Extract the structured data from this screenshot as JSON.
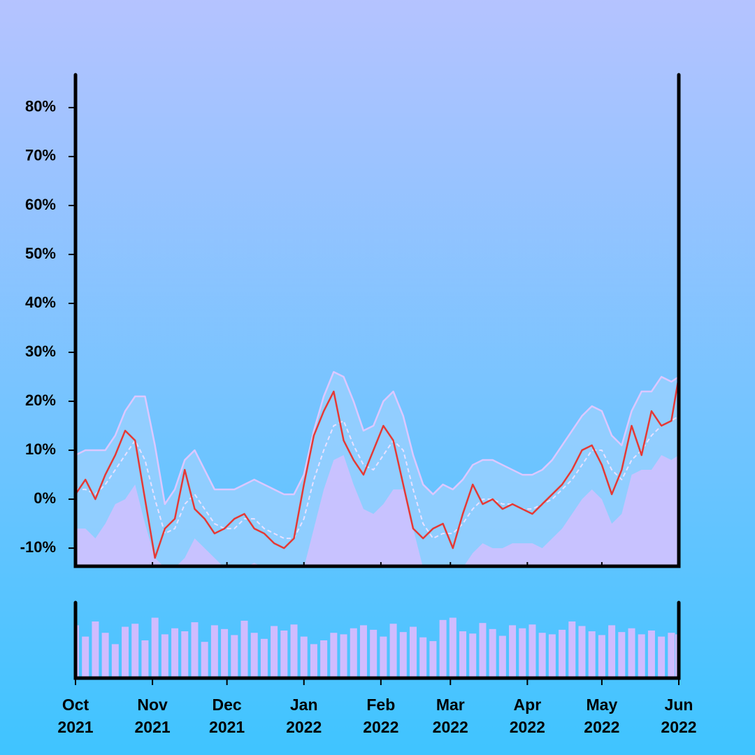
{
  "chart_data": [
    {
      "type": "line",
      "x": [
        0,
        4,
        8,
        12,
        16,
        20,
        24,
        28,
        32,
        36,
        40,
        44,
        48,
        52,
        56,
        60,
        64,
        68,
        72,
        76,
        80,
        84,
        88,
        92,
        96,
        100,
        104,
        108,
        112,
        116,
        120,
        124,
        128,
        132,
        136,
        140,
        144,
        148,
        152,
        156,
        160,
        164,
        168,
        172,
        176,
        180,
        184,
        188,
        192,
        196,
        200,
        204,
        208,
        212,
        216,
        220,
        224,
        228,
        232,
        236,
        240,
        243
      ],
      "xlim": [
        0,
        243
      ],
      "xticks": [
        {
          "value": 0,
          "label": "Oct 2021"
        },
        {
          "value": 31,
          "label": "Nov 2021"
        },
        {
          "value": 61,
          "label": "Dec 2021"
        },
        {
          "value": 92,
          "label": "Jan 2022"
        },
        {
          "value": 123,
          "label": "Feb 2022"
        },
        {
          "value": 151,
          "label": "Mar 2022"
        },
        {
          "value": 182,
          "label": "Apr 2022"
        },
        {
          "value": 212,
          "label": "May 2022"
        },
        {
          "value": 243,
          "label": "Jun 2022"
        }
      ],
      "ylim": [
        -13.7,
        86.7
      ],
      "yticks": [
        {
          "value": -10,
          "label": "-10%"
        },
        {
          "value": 0,
          "label": "0%"
        },
        {
          "value": 10,
          "label": "10%"
        },
        {
          "value": 20,
          "label": "20%"
        },
        {
          "value": 30,
          "label": "30%"
        },
        {
          "value": 40,
          "label": "40%"
        },
        {
          "value": 50,
          "label": "50%"
        },
        {
          "value": 60,
          "label": "60%"
        },
        {
          "value": 70,
          "label": "70%"
        },
        {
          "value": 80,
          "label": "80%"
        }
      ],
      "series": [
        {
          "color": "#dcc8ff",
          "fill": "#98d0ff",
          "values": [
            9,
            10,
            10,
            10,
            13,
            18,
            21,
            21,
            11,
            -1,
            2,
            8,
            10,
            6,
            2,
            2,
            2,
            3,
            4,
            3,
            2,
            1,
            1,
            5,
            14,
            21,
            26,
            25,
            20,
            14,
            15,
            20,
            22,
            17,
            9,
            3,
            1,
            3,
            2,
            4,
            7,
            8,
            8,
            7,
            6,
            5,
            5,
            6,
            8,
            11,
            14,
            17,
            19,
            18,
            13,
            11,
            18,
            22,
            22,
            25,
            24,
            25
          ]
        },
        {
          "fill": "#d2c0ff",
          "values": [
            -6,
            -6,
            -8,
            -5,
            -1,
            0,
            3,
            -5,
            -12,
            -14,
            -14,
            -12,
            -8,
            -10,
            -12,
            -14,
            -14,
            -14,
            -13,
            -14,
            -14,
            -14,
            -14,
            -14,
            -6,
            2,
            8,
            9,
            3,
            -2,
            -3,
            -1,
            2,
            2,
            -6,
            -14,
            -14,
            -14,
            -14,
            -14,
            -11,
            -9,
            -10,
            -10,
            -9,
            -9,
            -9,
            -10,
            -8,
            -6,
            -3,
            0,
            2,
            0,
            -5,
            -3,
            5,
            6,
            6,
            9,
            8,
            9
          ]
        },
        {
          "color": "#e8e0ff",
          "dash": true,
          "values": [
            2,
            2,
            1,
            3,
            6,
            9,
            12,
            8,
            0,
            -7,
            -6,
            -1,
            1,
            -2,
            -5,
            -6,
            -6,
            -4,
            -4,
            -6,
            -7,
            -8,
            -8,
            -4,
            4,
            10,
            15,
            16,
            11,
            7,
            6,
            9,
            12,
            10,
            2,
            -5,
            -8,
            -7,
            -7,
            -5,
            -2,
            0,
            0,
            -1,
            -1,
            -2,
            -2,
            -1,
            0,
            2,
            4,
            7,
            10,
            10,
            6,
            4,
            8,
            10,
            13,
            15,
            16,
            17
          ]
        },
        {
          "color": "#e53935",
          "values": [
            1,
            4,
            0,
            5,
            9,
            14,
            12,
            0,
            -12,
            -6,
            -4,
            6,
            -2,
            -4,
            -7,
            -6,
            -4,
            -3,
            -6,
            -7,
            -9,
            -10,
            -8,
            3,
            13,
            18,
            22,
            12,
            8,
            5,
            10,
            15,
            12,
            3,
            -6,
            -8,
            -6,
            -5,
            -10,
            -3,
            3,
            -1,
            0,
            -2,
            -1,
            -2,
            -3,
            -1,
            1,
            3,
            6,
            10,
            11,
            7,
            1,
            6,
            15,
            9,
            18,
            15,
            16,
            25
          ]
        }
      ]
    },
    {
      "type": "bar",
      "x": [
        0,
        4,
        8,
        12,
        16,
        20,
        24,
        28,
        32,
        36,
        40,
        44,
        48,
        52,
        56,
        60,
        64,
        68,
        72,
        76,
        80,
        84,
        88,
        92,
        96,
        100,
        104,
        108,
        112,
        116,
        120,
        124,
        128,
        132,
        136,
        140,
        144,
        148,
        152,
        156,
        160,
        164,
        168,
        172,
        176,
        180,
        184,
        188,
        192,
        196,
        200,
        204,
        208,
        212,
        216,
        220,
        224,
        228,
        232,
        236,
        240,
        243
      ],
      "xlim": [
        0,
        243
      ],
      "ylim": [
        0,
        100
      ],
      "color": "#d0bcff",
      "values": [
        70,
        55,
        75,
        60,
        45,
        68,
        72,
        50,
        80,
        58,
        66,
        62,
        74,
        48,
        70,
        65,
        57,
        76,
        60,
        52,
        69,
        63,
        71,
        55,
        45,
        50,
        60,
        58,
        66,
        70,
        64,
        55,
        72,
        61,
        68,
        54,
        49,
        77,
        80,
        62,
        59,
        73,
        65,
        56,
        70,
        66,
        71,
        60,
        58,
        64,
        75,
        69,
        62,
        57,
        70,
        61,
        66,
        58,
        63,
        55,
        60,
        58
      ]
    }
  ]
}
